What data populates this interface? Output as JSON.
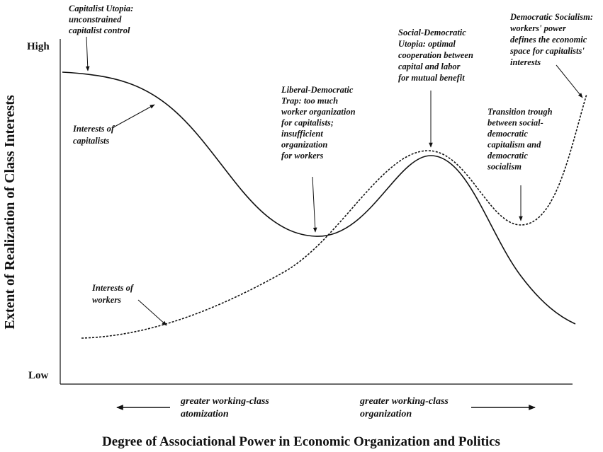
{
  "axes": {
    "y_label": "Extent of Realization of Class Interests",
    "x_label": "Degree of Associational Power in Economic Organization and Politics",
    "y_high": "High",
    "y_low": "Low"
  },
  "annotations": [
    {
      "lines": [
        "Capitalist Utopia:",
        "unconstrained",
        "capitalist control"
      ]
    },
    {
      "lines": [
        "Interests of",
        "capitalists"
      ]
    },
    {
      "lines": [
        "Liberal-Democratic",
        "Trap: too much",
        "worker organization",
        "for capitalists;",
        "insufficient",
        "organization",
        "for workers"
      ]
    },
    {
      "lines": [
        "Social-Democratic",
        "Utopia: optimal",
        "cooperation between",
        "capital and labor",
        "for mutual benefit"
      ]
    },
    {
      "lines": [
        "Democratic Socialism:",
        "workers' power",
        "defines the economic",
        "space for capitalists'",
        "interests"
      ]
    },
    {
      "lines": [
        "Transition trough",
        "between social-",
        "democratic",
        "capitalism and",
        "democratic",
        "socialism"
      ]
    },
    {
      "lines": [
        "Interests of",
        "workers"
      ]
    }
  ],
  "direction": {
    "left": [
      "greater working-class",
      "atomization"
    ],
    "right": [
      "greater working-class",
      "organization"
    ]
  }
}
